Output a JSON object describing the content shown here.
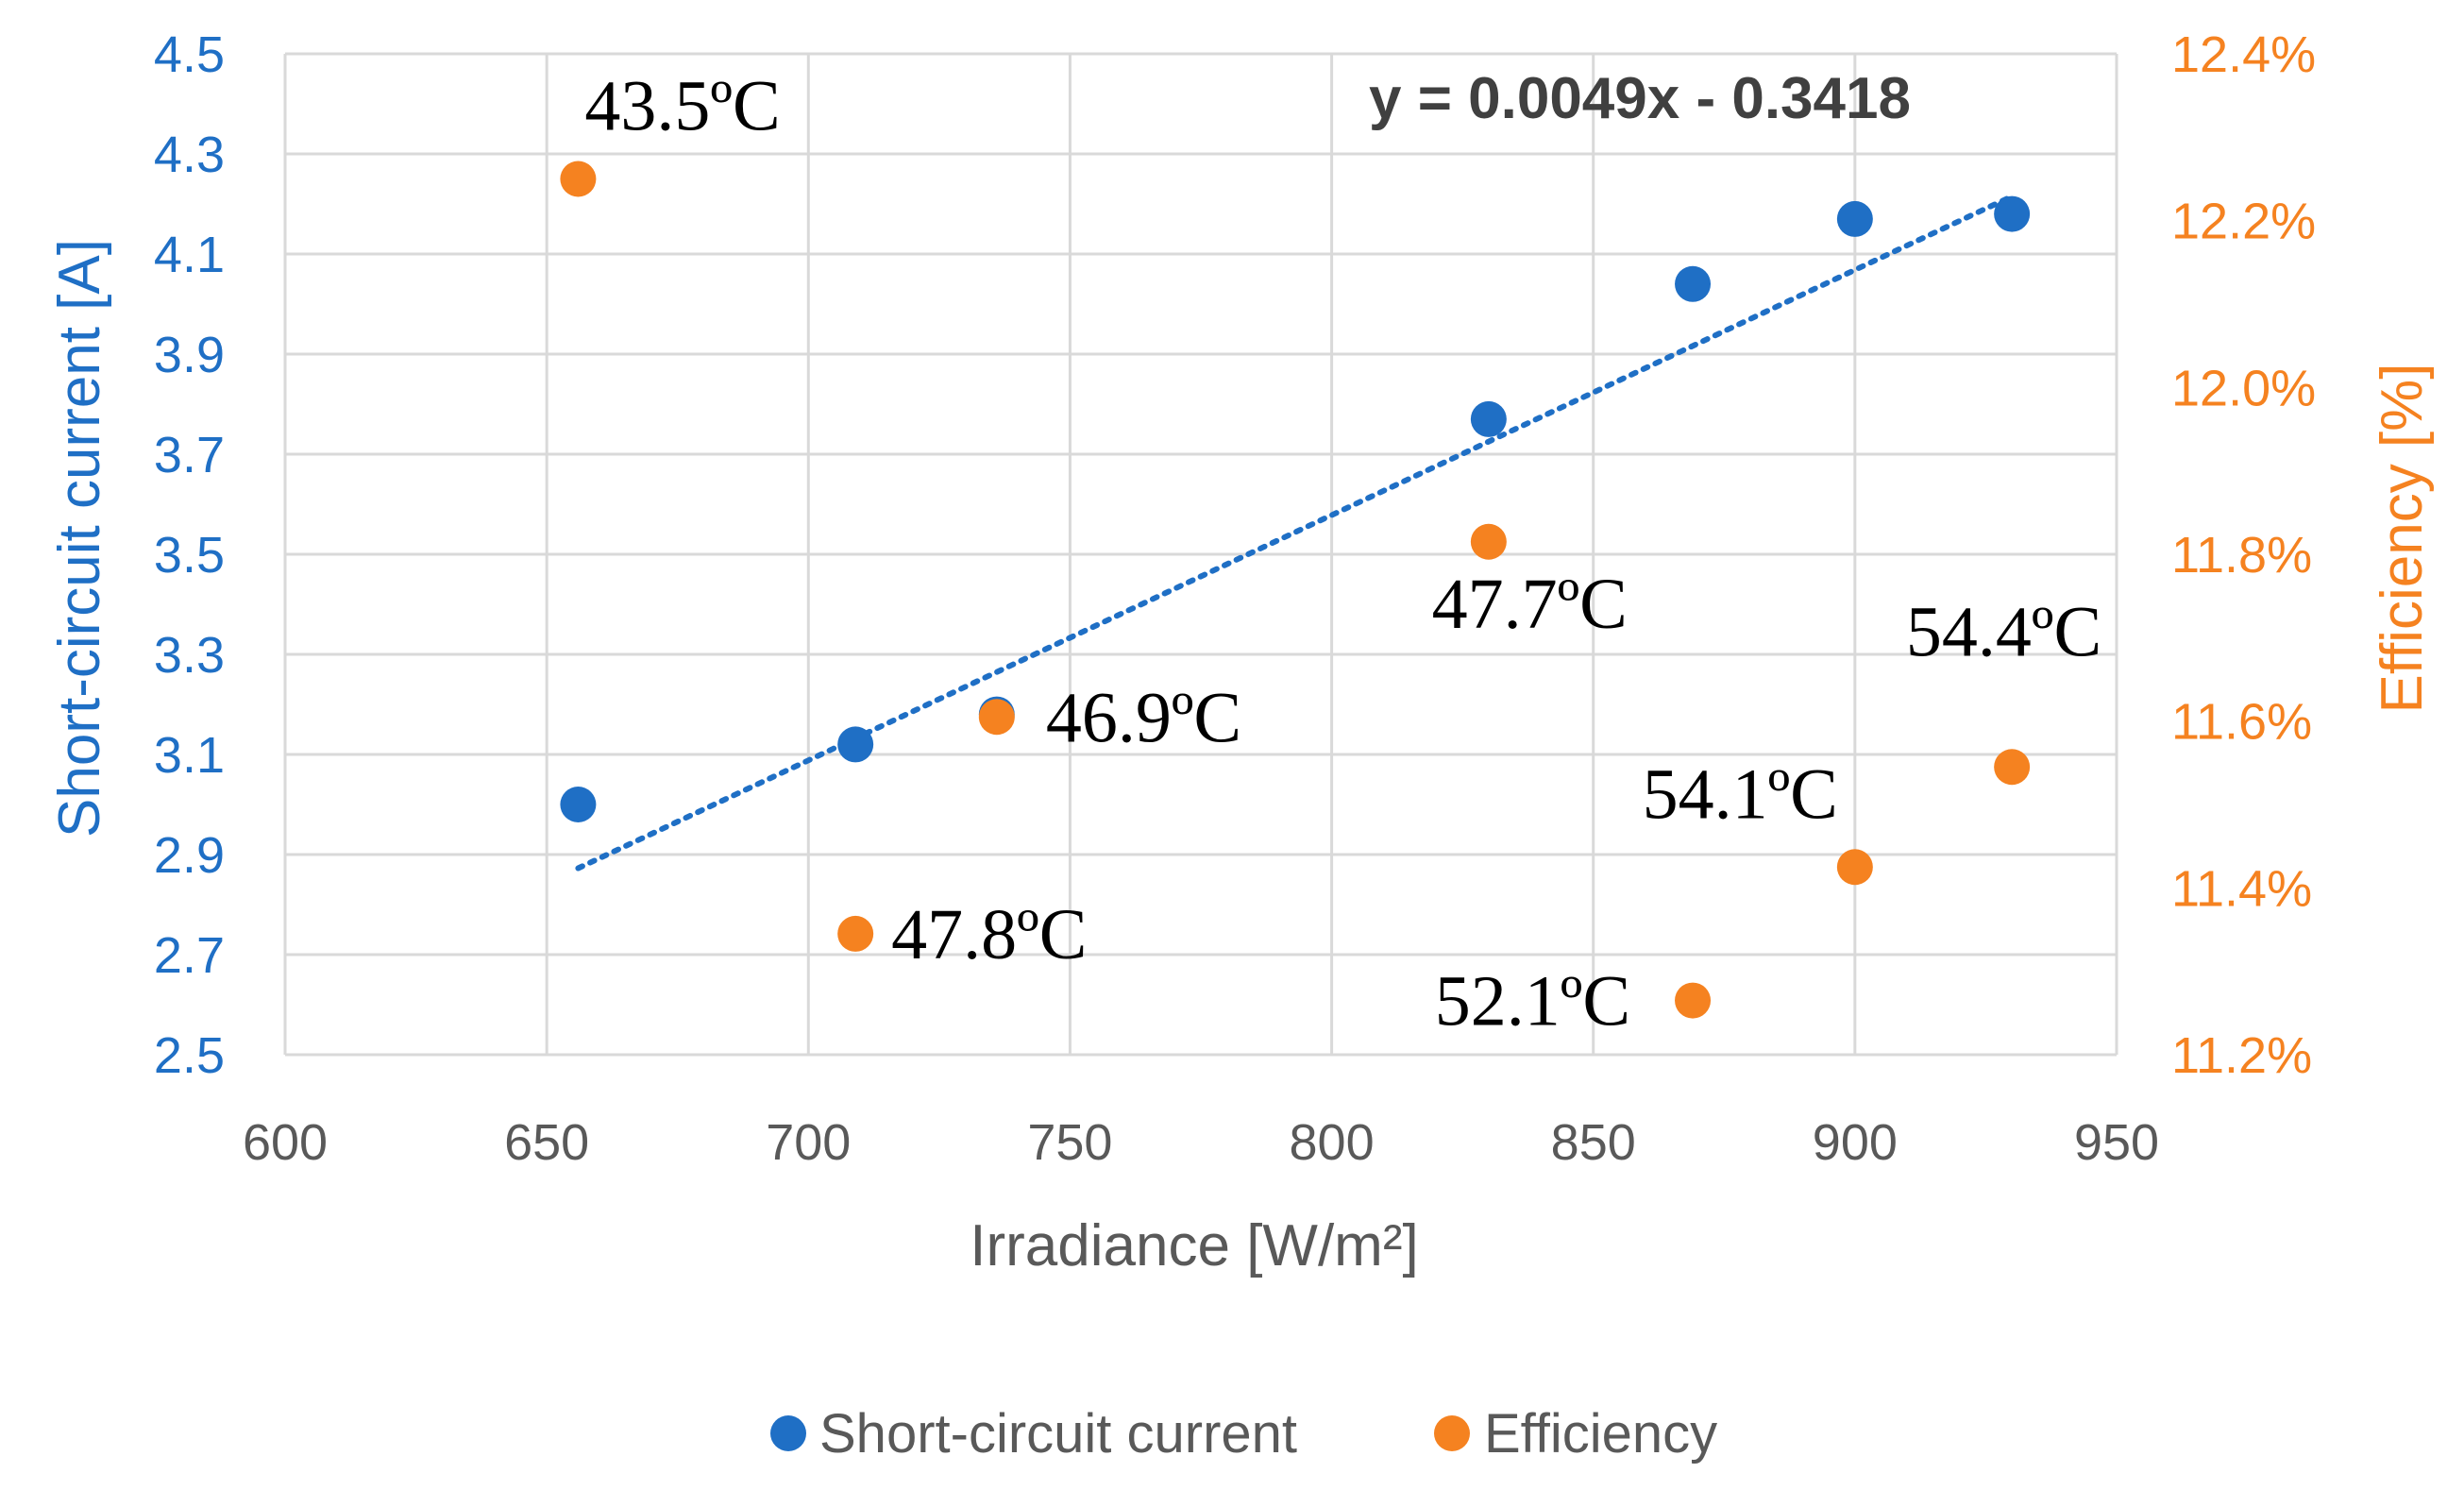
{
  "chart_data": {
    "type": "scatter",
    "xlabel": "Irradiance [W/m²]",
    "ylabel_left": "Short-circuit current [A]",
    "ylabel_right": "Efficiency [%]",
    "xlim": [
      600,
      950
    ],
    "ylim_left": [
      2.5,
      4.5
    ],
    "ylim_right": [
      11.2,
      12.4
    ],
    "x_ticks": [
      "600",
      "650",
      "700",
      "750",
      "800",
      "850",
      "900",
      "950"
    ],
    "y_left_ticks": [
      "2.5",
      "2.7",
      "2.9",
      "3.1",
      "3.3",
      "3.5",
      "3.7",
      "3.9",
      "4.1",
      "4.3",
      "4.5"
    ],
    "y_right_ticks": [
      "11.2%",
      "11.4%",
      "11.6%",
      "11.8%",
      "12.0%",
      "12.2%",
      "12.4%"
    ],
    "grid": true,
    "legend_position": "bottom",
    "series": [
      {
        "name": "Short-circuit current",
        "axis": "left",
        "color": "#1F6FC5",
        "x": [
          656,
          709,
          736,
          830,
          869,
          900,
          930
        ],
        "y": [
          3.0,
          3.12,
          3.18,
          3.77,
          4.04,
          4.17,
          4.18
        ]
      },
      {
        "name": "Efficiency",
        "axis": "right",
        "color": "#F58220",
        "x": [
          656,
          709,
          736,
          830,
          869,
          900,
          930
        ],
        "y": [
          12.25,
          11.345,
          11.605,
          11.815,
          11.265,
          11.425,
          11.545
        ],
        "labels": [
          "43.5ºC",
          "47.8ºC",
          "46.9ºC",
          "47.7ºC",
          "52.1ºC",
          "54.1ºC",
          "54.4ºC"
        ]
      }
    ],
    "trendline": {
      "series": "Short-circuit current",
      "slope": 0.0049,
      "intercept": -0.3418,
      "x_range": [
        656,
        930
      ],
      "equation": "y = 0.0049x - 0.3418",
      "color": "#1F6FC5"
    }
  },
  "colors": {
    "left_axis": "#1F6FC5",
    "right_axis": "#F58220",
    "grid": "#D9D9D9"
  }
}
